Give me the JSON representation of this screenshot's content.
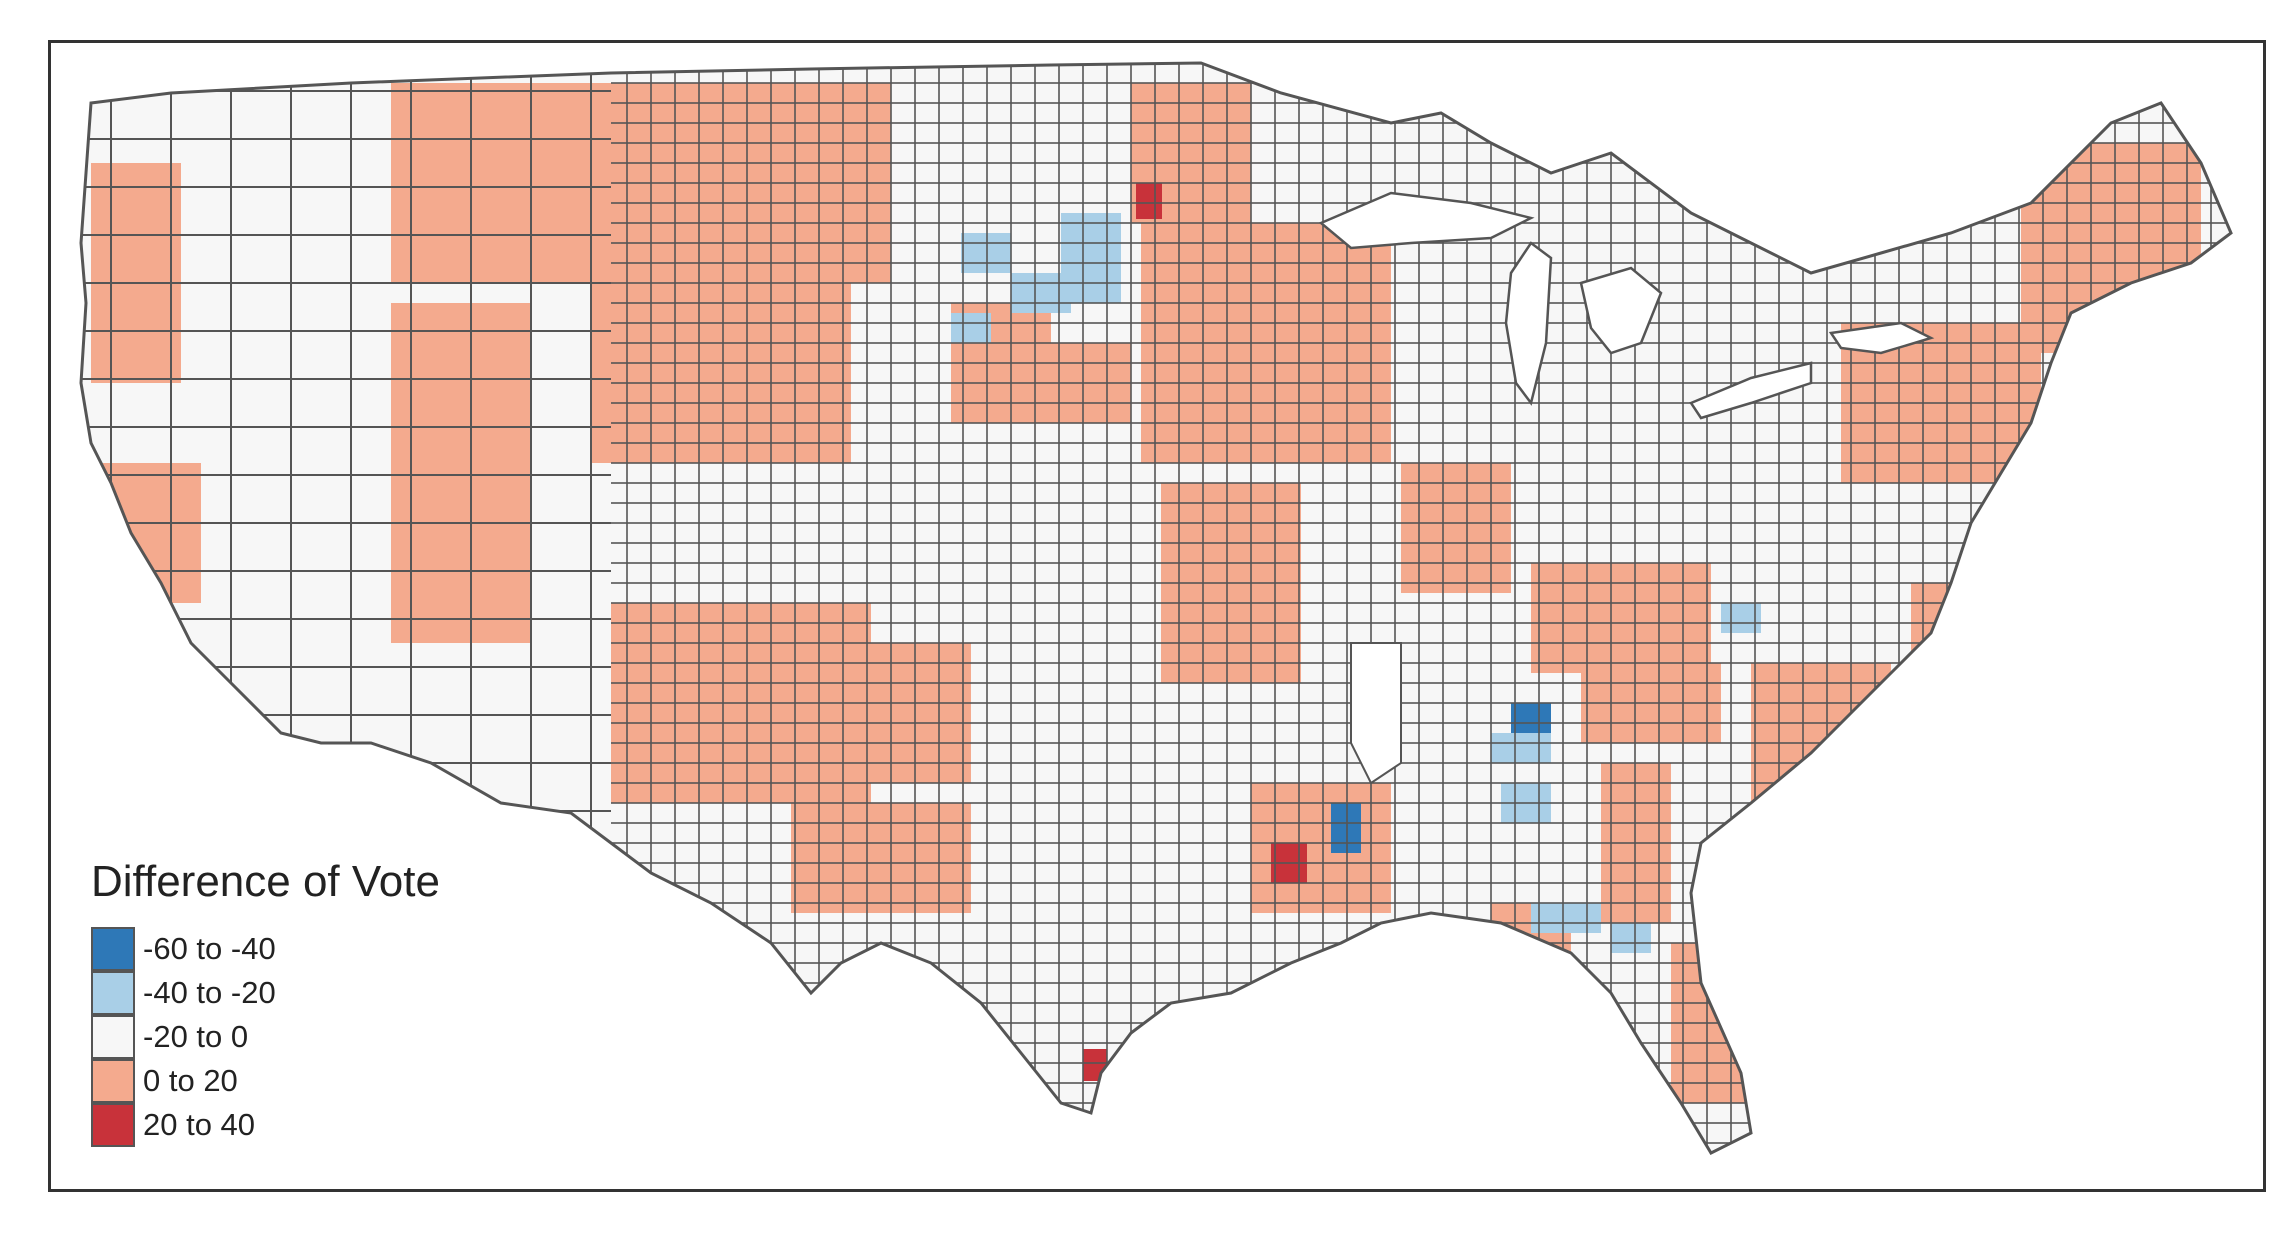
{
  "legend": {
    "title": "Difference of Vote",
    "items": [
      {
        "label": "-60 to -40",
        "color": "#2e78b7"
      },
      {
        "label": "-40 to -20",
        "color": "#a9cfe7"
      },
      {
        "label": "-20 to 0",
        "color": "#f7f7f7"
      },
      {
        "label": "0 to 20",
        "color": "#f4aa8e"
      },
      {
        "label": "20 to 40",
        "color": "#c8323a"
      }
    ]
  },
  "colors": {
    "border": "#555555",
    "frame": "#333333"
  }
}
